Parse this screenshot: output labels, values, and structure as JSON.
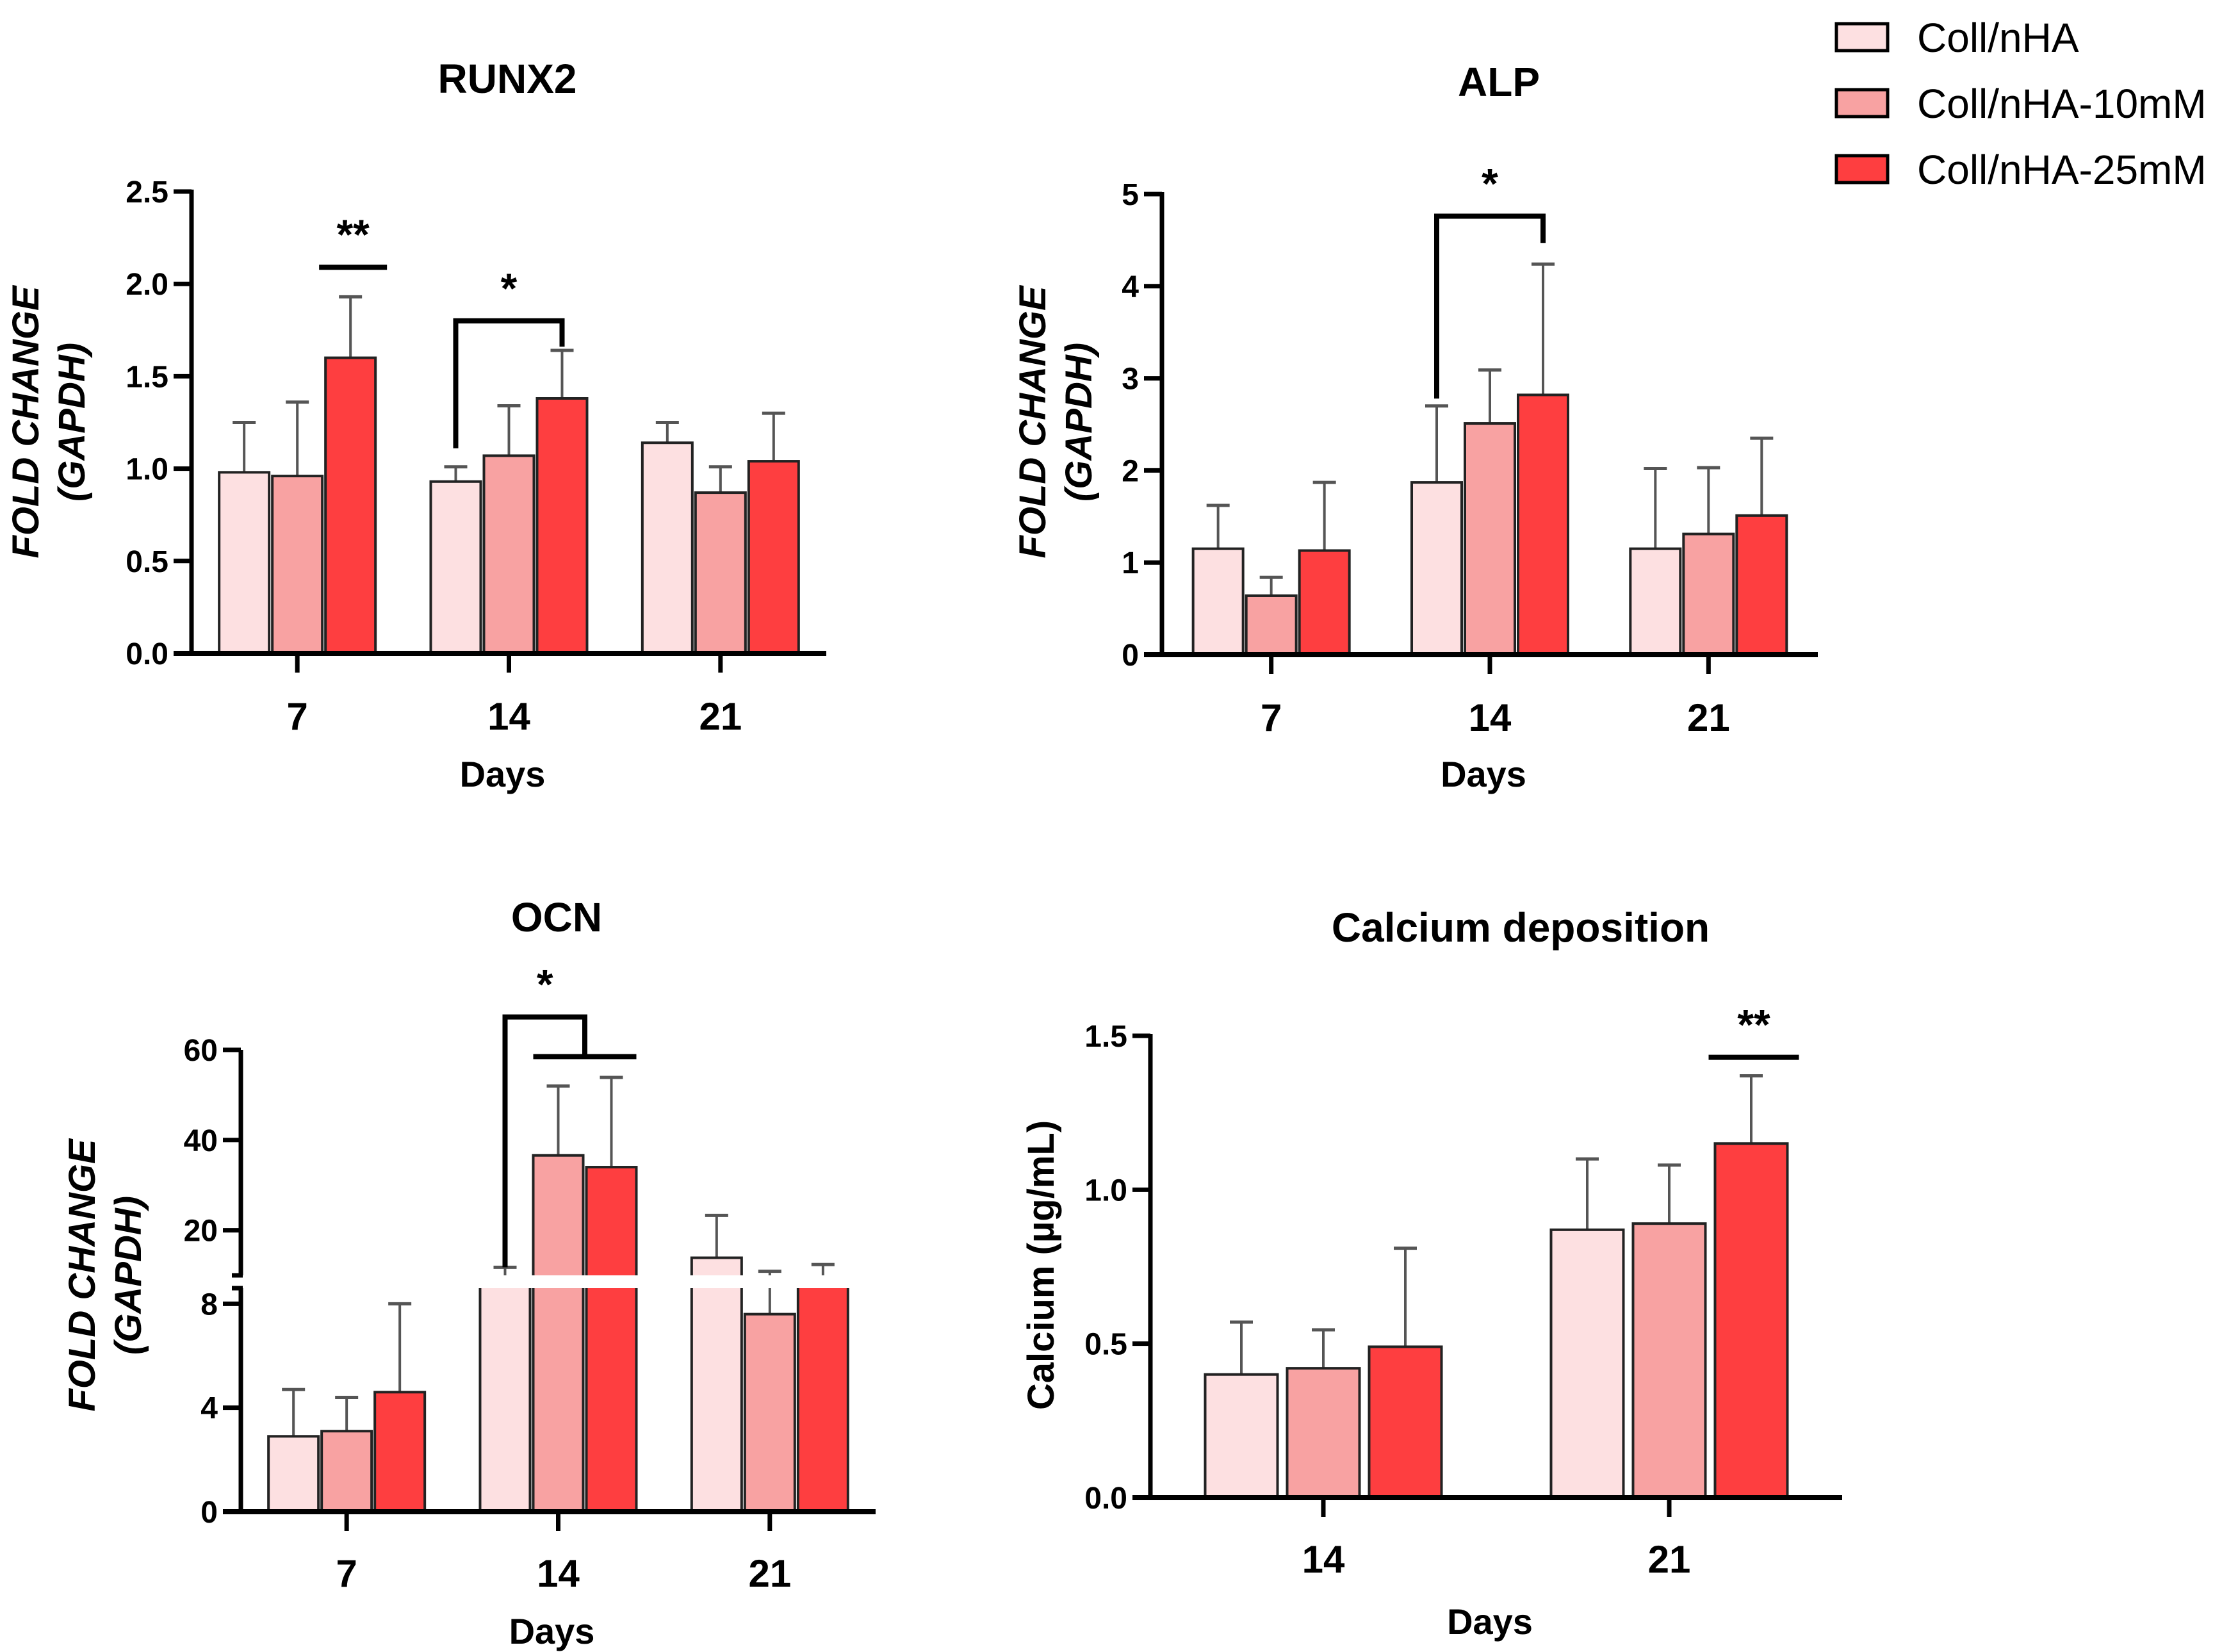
{
  "legend": {
    "items": [
      {
        "label": "Coll/nHA",
        "color": "#FDE0E1"
      },
      {
        "label": "Coll/nHA-10mM",
        "color": "#F8A2A2"
      },
      {
        "label": "Coll/nHA-25mM",
        "color": "#FE3E40"
      }
    ]
  },
  "colors": {
    "axis": "#000000",
    "error_bar": "#555555"
  },
  "chart_data": [
    {
      "type": "bar",
      "title": "RUNX2",
      "xlabel": "Days",
      "ylabel_lines": [
        "FOLD CHANGE",
        "(GAPDH)"
      ],
      "categories": [
        "7",
        "14",
        "21"
      ],
      "ylim": [
        0,
        2.5
      ],
      "yticks": [
        {
          "v": 0,
          "label": "0.0"
        },
        {
          "v": 0.5,
          "label": "0.5"
        },
        {
          "v": 1.0,
          "label": "1.0"
        },
        {
          "v": 1.5,
          "label": "1.5"
        },
        {
          "v": 2.0,
          "label": "2.0"
        },
        {
          "v": 2.5,
          "label": "2.5"
        }
      ],
      "series": [
        {
          "name": "Coll/nHA",
          "values": [
            0.98,
            0.93,
            1.14
          ],
          "error_upper": [
            1.25,
            1.01,
            1.25
          ]
        },
        {
          "name": "Coll/nHA-10mM",
          "values": [
            0.96,
            1.07,
            0.87
          ],
          "error_upper": [
            1.36,
            1.34,
            1.01
          ]
        },
        {
          "name": "Coll/nHA-25mM",
          "values": [
            1.6,
            1.38,
            1.04
          ],
          "error_upper": [
            1.93,
            1.64,
            1.3
          ]
        }
      ],
      "annotations": [
        {
          "type": "line",
          "label": "**",
          "group": 0,
          "from_series": 2,
          "to_series": 2,
          "y": 2.09
        },
        {
          "type": "bracket",
          "label": "*",
          "group": 1,
          "from_series": 0,
          "to_series": 2,
          "y": 1.8,
          "left_drop": 1.11,
          "right_drop": 1.66
        }
      ]
    },
    {
      "type": "bar",
      "title": "ALP",
      "xlabel": "Days",
      "ylabel_lines": [
        "FOLD CHANGE",
        "(GAPDH)"
      ],
      "categories": [
        "7",
        "14",
        "21"
      ],
      "ylim": [
        0,
        5
      ],
      "yticks": [
        {
          "v": 0,
          "label": "0"
        },
        {
          "v": 1,
          "label": "1"
        },
        {
          "v": 2,
          "label": "2"
        },
        {
          "v": 3,
          "label": "3"
        },
        {
          "v": 4,
          "label": "4"
        },
        {
          "v": 5,
          "label": "5"
        }
      ],
      "series": [
        {
          "name": "Coll/nHA",
          "values": [
            1.15,
            1.87,
            1.15
          ],
          "error_upper": [
            1.62,
            2.7,
            2.02
          ]
        },
        {
          "name": "Coll/nHA-10mM",
          "values": [
            0.64,
            2.51,
            1.31
          ],
          "error_upper": [
            0.84,
            3.09,
            2.03
          ]
        },
        {
          "name": "Coll/nHA-25mM",
          "values": [
            1.13,
            2.82,
            1.51
          ],
          "error_upper": [
            1.87,
            4.24,
            2.35
          ]
        }
      ],
      "annotations": [
        {
          "type": "bracket",
          "label": "*",
          "group": 1,
          "from_series": 0,
          "to_series": 2,
          "y": 4.76,
          "left_drop": 2.78,
          "right_drop": 4.47
        }
      ]
    },
    {
      "type": "bar",
      "title": "OCN",
      "xlabel": "Days",
      "ylabel_lines": [
        "FOLD CHANGE",
        "(GAPDH)"
      ],
      "categories": [
        "7",
        "14",
        "21"
      ],
      "ylim": [
        0,
        60
      ],
      "axis_break": [
        8.6,
        10
      ],
      "yticks": [
        {
          "v": 0,
          "label": "0"
        },
        {
          "v": 4,
          "label": "4"
        },
        {
          "v": 8,
          "label": "8"
        },
        {
          "v": 20,
          "label": "20"
        },
        {
          "v": 40,
          "label": "40"
        },
        {
          "v": 60,
          "label": "60"
        }
      ],
      "series": [
        {
          "name": "Coll/nHA",
          "values": [
            2.9,
            9.6,
            13.9
          ],
          "error_upper": [
            4.7,
            11.8,
            23.3
          ]
        },
        {
          "name": "Coll/nHA-10mM",
          "values": [
            3.1,
            36.6,
            7.6
          ],
          "error_upper": [
            4.4,
            52.0,
            10.9
          ]
        },
        {
          "name": "Coll/nHA-25mM",
          "values": [
            4.6,
            34.0,
            9.5
          ],
          "error_upper": [
            8.0,
            53.9,
            12.4
          ]
        }
      ],
      "annotations": [
        {
          "type": "nested_bracket",
          "label": "*",
          "group": 1,
          "from_series": 0,
          "left_drop": 11.8,
          "y": 67.3,
          "sub_from_series": 1,
          "sub_to_series": 2,
          "sub_y": 58.5
        }
      ]
    },
    {
      "type": "bar",
      "title": "Calcium deposition",
      "xlabel": "Days",
      "ylabel_lines": [
        "Calcium (µg/mL)"
      ],
      "categories": [
        "14",
        "21"
      ],
      "ylim": [
        0,
        1.5
      ],
      "yticks": [
        {
          "v": 0,
          "label": "0.0"
        },
        {
          "v": 0.5,
          "label": "0.5"
        },
        {
          "v": 1.0,
          "label": "1.0"
        },
        {
          "v": 1.5,
          "label": "1.5"
        }
      ],
      "series": [
        {
          "name": "Coll/nHA",
          "values": [
            0.4,
            0.87
          ],
          "error_upper": [
            0.57,
            1.1
          ]
        },
        {
          "name": "Coll/nHA-10mM",
          "values": [
            0.42,
            0.89
          ],
          "error_upper": [
            0.545,
            1.08
          ]
        },
        {
          "name": "Coll/nHA-25mM",
          "values": [
            0.49,
            1.15
          ],
          "error_upper": [
            0.81,
            1.37
          ]
        }
      ],
      "annotations": [
        {
          "type": "line",
          "label": "**",
          "group": 1,
          "from_series": 2,
          "to_series": 2,
          "y": 1.43
        }
      ]
    }
  ]
}
